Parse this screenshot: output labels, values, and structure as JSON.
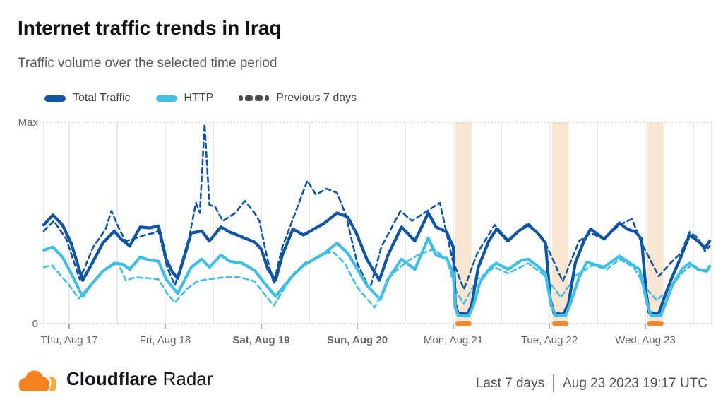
{
  "header": {
    "title": "Internet traffic trends in Iraq",
    "subtitle": "Traffic volume over the selected time period"
  },
  "legend": [
    {
      "label": "Total Traffic",
      "color": "#1055A4",
      "style": "solid"
    },
    {
      "label": "HTTP",
      "color": "#41BEE5",
      "style": "solid"
    },
    {
      "label": "Previous 7 days",
      "color": "#4D4D4D",
      "style": "dashed"
    }
  ],
  "footer": {
    "brand_bold": "Cloudflare",
    "brand_regular": "Radar",
    "range_label": "Last 7 days",
    "timestamp": "Aug 23 2023 19:17 UTC"
  },
  "chart_data": {
    "type": "line",
    "title": "Internet traffic trends in Iraq",
    "y_axis": {
      "max_label": "Max",
      "zero_label": "0",
      "domain": [
        0,
        1
      ],
      "note": "values are fraction of Max"
    },
    "x_axis": {
      "unit": "days (0 = Thu Aug 17 00:00)",
      "domain_days": [
        -0.265,
        6.69
      ],
      "gridline_interval_days": 0.5,
      "ticks": [
        {
          "day": 0,
          "label": "Thu, Aug 17",
          "bold": false
        },
        {
          "day": 1,
          "label": "Fri, Aug 18",
          "bold": false
        },
        {
          "day": 2,
          "label": "Sat, Aug 19",
          "bold": true
        },
        {
          "day": 3,
          "label": "Sun, Aug 20",
          "bold": true
        },
        {
          "day": 4,
          "label": "Mon, Aug 21",
          "bold": false
        },
        {
          "day": 5,
          "label": "Tue, Aug 22",
          "bold": false
        },
        {
          "day": 6,
          "label": "Wed, Aug 23",
          "bold": false
        }
      ]
    },
    "anomaly_bands": {
      "fill_color": "#FAE5D0",
      "marker_color": "#F0883A",
      "ranges_days": [
        [
          4.02,
          4.19
        ],
        [
          5.03,
          5.2
        ],
        [
          6.02,
          6.19
        ]
      ]
    },
    "colors": {
      "grid": "#E4E4E4",
      "dotted_bounds": "#C8C8C8",
      "tick": "#9A9A9A",
      "axis_label": "#666666"
    },
    "series": [
      {
        "name": "Total Traffic (previous 7 days)",
        "style": "dashed",
        "color": "#1055A4",
        "width": 2.6,
        "points": [
          [
            -0.265,
            0.46
          ],
          [
            -0.16,
            0.51
          ],
          [
            -0.03,
            0.42
          ],
          [
            0.11,
            0.22
          ],
          [
            0.25,
            0.38
          ],
          [
            0.38,
            0.47
          ],
          [
            0.44,
            0.56
          ],
          [
            0.53,
            0.46
          ],
          [
            0.59,
            0.41
          ],
          [
            0.66,
            0.42
          ],
          [
            0.79,
            0.44
          ],
          [
            0.88,
            0.45
          ],
          [
            0.93,
            0.46
          ],
          [
            1.02,
            0.28
          ],
          [
            1.1,
            0.19
          ],
          [
            1.17,
            0.3
          ],
          [
            1.25,
            0.43
          ],
          [
            1.32,
            0.6
          ],
          [
            1.36,
            0.55
          ],
          [
            1.41,
            0.99
          ],
          [
            1.46,
            0.59
          ],
          [
            1.52,
            0.58
          ],
          [
            1.6,
            0.51
          ],
          [
            1.73,
            0.55
          ],
          [
            1.83,
            0.61
          ],
          [
            1.93,
            0.55
          ],
          [
            1.98,
            0.51
          ],
          [
            2.07,
            0.31
          ],
          [
            2.13,
            0.2
          ],
          [
            2.22,
            0.38
          ],
          [
            2.48,
            0.71
          ],
          [
            2.57,
            0.64
          ],
          [
            2.68,
            0.67
          ],
          [
            2.79,
            0.65
          ],
          [
            2.88,
            0.54
          ],
          [
            3.0,
            0.3
          ],
          [
            3.13,
            0.17
          ],
          [
            3.25,
            0.38
          ],
          [
            3.45,
            0.56
          ],
          [
            3.57,
            0.51
          ],
          [
            3.86,
            0.6
          ],
          [
            3.99,
            0.32
          ],
          [
            4.11,
            0.17
          ],
          [
            4.25,
            0.35
          ],
          [
            4.43,
            0.49
          ],
          [
            4.57,
            0.415
          ],
          [
            4.78,
            0.5
          ],
          [
            4.95,
            0.41
          ],
          [
            5.14,
            0.21
          ],
          [
            5.31,
            0.41
          ],
          [
            5.43,
            0.45
          ],
          [
            5.57,
            0.42
          ],
          [
            5.73,
            0.49
          ],
          [
            5.86,
            0.52
          ],
          [
            5.96,
            0.4
          ],
          [
            6.14,
            0.235
          ],
          [
            6.26,
            0.3
          ],
          [
            6.37,
            0.35
          ],
          [
            6.46,
            0.455
          ],
          [
            6.55,
            0.425
          ],
          [
            6.62,
            0.36
          ],
          [
            6.67,
            0.385
          ]
        ]
      },
      {
        "name": "HTTP (previous 7 days)",
        "style": "dashed",
        "color": "#41BEE5",
        "width": 2.6,
        "points": [
          [
            -0.265,
            0.28
          ],
          [
            -0.18,
            0.29
          ],
          [
            0.0,
            0.19
          ],
          [
            0.1,
            0.125
          ],
          [
            0.25,
            0.21
          ],
          [
            0.37,
            0.27
          ],
          [
            0.51,
            0.3
          ],
          [
            0.59,
            0.215
          ],
          [
            0.69,
            0.23
          ],
          [
            0.84,
            0.225
          ],
          [
            0.93,
            0.22
          ],
          [
            1.02,
            0.15
          ],
          [
            1.1,
            0.105
          ],
          [
            1.22,
            0.17
          ],
          [
            1.33,
            0.21
          ],
          [
            1.44,
            0.22
          ],
          [
            1.61,
            0.23
          ],
          [
            1.78,
            0.23
          ],
          [
            1.93,
            0.21
          ],
          [
            2.06,
            0.13
          ],
          [
            2.13,
            0.09
          ],
          [
            2.3,
            0.22
          ],
          [
            2.45,
            0.3
          ],
          [
            2.6,
            0.33
          ],
          [
            2.74,
            0.36
          ],
          [
            2.87,
            0.3
          ],
          [
            3.0,
            0.18
          ],
          [
            3.18,
            0.08
          ],
          [
            3.35,
            0.24
          ],
          [
            3.52,
            0.31
          ],
          [
            3.65,
            0.345
          ],
          [
            3.8,
            0.37
          ],
          [
            3.93,
            0.32
          ],
          [
            4.04,
            0.15
          ],
          [
            4.11,
            0.1
          ],
          [
            4.25,
            0.22
          ],
          [
            4.43,
            0.28
          ],
          [
            4.57,
            0.25
          ],
          [
            4.78,
            0.3
          ],
          [
            4.95,
            0.24
          ],
          [
            5.08,
            0.155
          ],
          [
            5.12,
            0.13
          ],
          [
            5.28,
            0.24
          ],
          [
            5.45,
            0.29
          ],
          [
            5.6,
            0.27
          ],
          [
            5.73,
            0.32
          ],
          [
            5.88,
            0.28
          ],
          [
            6.0,
            0.18
          ],
          [
            6.12,
            0.115
          ],
          [
            6.26,
            0.18
          ],
          [
            6.4,
            0.26
          ],
          [
            6.48,
            0.29
          ],
          [
            6.57,
            0.265
          ],
          [
            6.67,
            0.27
          ]
        ]
      },
      {
        "name": "Total Traffic",
        "style": "solid",
        "color": "#1055A4",
        "width": 4.2,
        "points": [
          [
            -0.265,
            0.49
          ],
          [
            -0.17,
            0.54
          ],
          [
            -0.07,
            0.49
          ],
          [
            0.02,
            0.4
          ],
          [
            0.14,
            0.215
          ],
          [
            0.24,
            0.3
          ],
          [
            0.35,
            0.4
          ],
          [
            0.47,
            0.46
          ],
          [
            0.54,
            0.42
          ],
          [
            0.63,
            0.385
          ],
          [
            0.74,
            0.48
          ],
          [
            0.84,
            0.475
          ],
          [
            0.93,
            0.485
          ],
          [
            1.01,
            0.32
          ],
          [
            1.07,
            0.26
          ],
          [
            1.13,
            0.225
          ],
          [
            1.21,
            0.35
          ],
          [
            1.27,
            0.45
          ],
          [
            1.38,
            0.46
          ],
          [
            1.46,
            0.41
          ],
          [
            1.58,
            0.48
          ],
          [
            1.67,
            0.455
          ],
          [
            1.8,
            0.43
          ],
          [
            1.93,
            0.405
          ],
          [
            2.0,
            0.37
          ],
          [
            2.07,
            0.27
          ],
          [
            2.15,
            0.215
          ],
          [
            2.22,
            0.34
          ],
          [
            2.33,
            0.47
          ],
          [
            2.44,
            0.44
          ],
          [
            2.55,
            0.47
          ],
          [
            2.66,
            0.5
          ],
          [
            2.79,
            0.55
          ],
          [
            2.9,
            0.53
          ],
          [
            2.99,
            0.45
          ],
          [
            3.1,
            0.32
          ],
          [
            3.23,
            0.215
          ],
          [
            3.32,
            0.34
          ],
          [
            3.46,
            0.48
          ],
          [
            3.6,
            0.41
          ],
          [
            3.74,
            0.55
          ],
          [
            3.82,
            0.48
          ],
          [
            3.93,
            0.455
          ],
          [
            4.0,
            0.38
          ],
          [
            4.02,
            0.1
          ],
          [
            4.05,
            0.05
          ],
          [
            4.15,
            0.048
          ],
          [
            4.19,
            0.09
          ],
          [
            4.26,
            0.28
          ],
          [
            4.37,
            0.41
          ],
          [
            4.45,
            0.47
          ],
          [
            4.57,
            0.41
          ],
          [
            4.68,
            0.46
          ],
          [
            4.78,
            0.49
          ],
          [
            4.88,
            0.45
          ],
          [
            4.96,
            0.4
          ],
          [
            5.01,
            0.12
          ],
          [
            5.05,
            0.05
          ],
          [
            5.15,
            0.047
          ],
          [
            5.2,
            0.1
          ],
          [
            5.27,
            0.3
          ],
          [
            5.36,
            0.41
          ],
          [
            5.43,
            0.47
          ],
          [
            5.57,
            0.42
          ],
          [
            5.65,
            0.46
          ],
          [
            5.73,
            0.5
          ],
          [
            5.81,
            0.47
          ],
          [
            5.9,
            0.455
          ],
          [
            5.96,
            0.42
          ],
          [
            6.01,
            0.15
          ],
          [
            6.04,
            0.055
          ],
          [
            6.14,
            0.05
          ],
          [
            6.19,
            0.12
          ],
          [
            6.27,
            0.22
          ],
          [
            6.37,
            0.33
          ],
          [
            6.46,
            0.44
          ],
          [
            6.55,
            0.41
          ],
          [
            6.62,
            0.375
          ],
          [
            6.67,
            0.41
          ]
        ]
      },
      {
        "name": "HTTP",
        "style": "solid",
        "color": "#41BEE5",
        "width": 4.2,
        "points": [
          [
            -0.265,
            0.365
          ],
          [
            -0.17,
            0.38
          ],
          [
            -0.07,
            0.33
          ],
          [
            0.02,
            0.25
          ],
          [
            0.14,
            0.135
          ],
          [
            0.24,
            0.2
          ],
          [
            0.35,
            0.26
          ],
          [
            0.47,
            0.3
          ],
          [
            0.56,
            0.295
          ],
          [
            0.63,
            0.27
          ],
          [
            0.74,
            0.33
          ],
          [
            0.84,
            0.315
          ],
          [
            0.93,
            0.31
          ],
          [
            1.01,
            0.22
          ],
          [
            1.13,
            0.15
          ],
          [
            1.27,
            0.28
          ],
          [
            1.38,
            0.32
          ],
          [
            1.46,
            0.28
          ],
          [
            1.58,
            0.34
          ],
          [
            1.67,
            0.31
          ],
          [
            1.8,
            0.3
          ],
          [
            1.93,
            0.265
          ],
          [
            2.07,
            0.18
          ],
          [
            2.15,
            0.135
          ],
          [
            2.33,
            0.24
          ],
          [
            2.44,
            0.29
          ],
          [
            2.66,
            0.35
          ],
          [
            2.79,
            0.4
          ],
          [
            2.9,
            0.35
          ],
          [
            2.99,
            0.28
          ],
          [
            3.1,
            0.19
          ],
          [
            3.24,
            0.12
          ],
          [
            3.32,
            0.22
          ],
          [
            3.46,
            0.32
          ],
          [
            3.6,
            0.27
          ],
          [
            3.74,
            0.425
          ],
          [
            3.82,
            0.34
          ],
          [
            3.93,
            0.325
          ],
          [
            4.0,
            0.25
          ],
          [
            4.02,
            0.08
          ],
          [
            4.05,
            0.04
          ],
          [
            4.16,
            0.038
          ],
          [
            4.21,
            0.09
          ],
          [
            4.28,
            0.21
          ],
          [
            4.39,
            0.28
          ],
          [
            4.45,
            0.3
          ],
          [
            4.57,
            0.27
          ],
          [
            4.71,
            0.315
          ],
          [
            4.78,
            0.32
          ],
          [
            4.88,
            0.285
          ],
          [
            4.96,
            0.25
          ],
          [
            5.02,
            0.09
          ],
          [
            5.07,
            0.038
          ],
          [
            5.17,
            0.04
          ],
          [
            5.22,
            0.1
          ],
          [
            5.31,
            0.23
          ],
          [
            5.39,
            0.305
          ],
          [
            5.57,
            0.28
          ],
          [
            5.73,
            0.335
          ],
          [
            5.84,
            0.3
          ],
          [
            5.94,
            0.27
          ],
          [
            6.02,
            0.1
          ],
          [
            6.06,
            0.038
          ],
          [
            6.16,
            0.04
          ],
          [
            6.21,
            0.1
          ],
          [
            6.29,
            0.2
          ],
          [
            6.39,
            0.275
          ],
          [
            6.46,
            0.3
          ],
          [
            6.55,
            0.27
          ],
          [
            6.64,
            0.26
          ],
          [
            6.67,
            0.285
          ]
        ]
      }
    ]
  }
}
